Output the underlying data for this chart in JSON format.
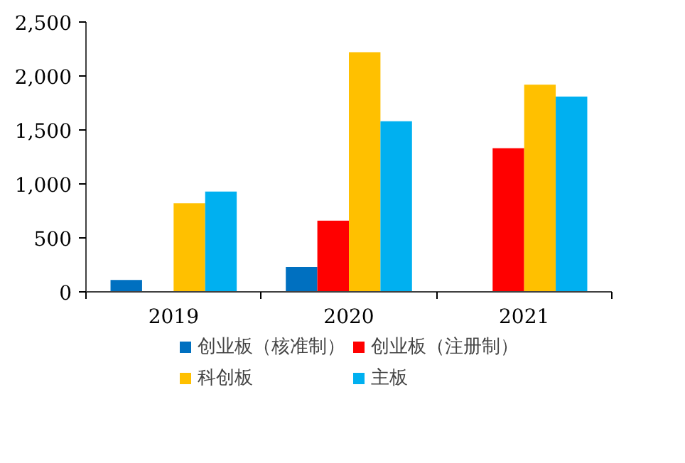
{
  "chart_data": {
    "type": "bar",
    "categories": [
      "2019",
      "2020",
      "2021"
    ],
    "series": [
      {
        "name": "创业板（核准制）",
        "color": "#0070c0",
        "values": [
          110,
          230,
          null
        ]
      },
      {
        "name": "创业板（注册制）",
        "color": "#ff0000",
        "values": [
          null,
          660,
          1330
        ]
      },
      {
        "name": "科创板",
        "color": "#ffc000",
        "values": [
          820,
          2220,
          1920
        ]
      },
      {
        "name": "主板",
        "color": "#00b0f0",
        "values": [
          930,
          1580,
          1810
        ]
      }
    ],
    "ylim": [
      0,
      2500
    ],
    "yticks": [
      {
        "value": 0,
        "label": "0"
      },
      {
        "value": 500,
        "label": "500"
      },
      {
        "value": 1000,
        "label": "1,000"
      },
      {
        "value": 1500,
        "label": "1,500"
      },
      {
        "value": 2000,
        "label": "2,000"
      },
      {
        "value": 2500,
        "label": "2,500"
      }
    ],
    "grid": false,
    "legend": "bottom"
  }
}
